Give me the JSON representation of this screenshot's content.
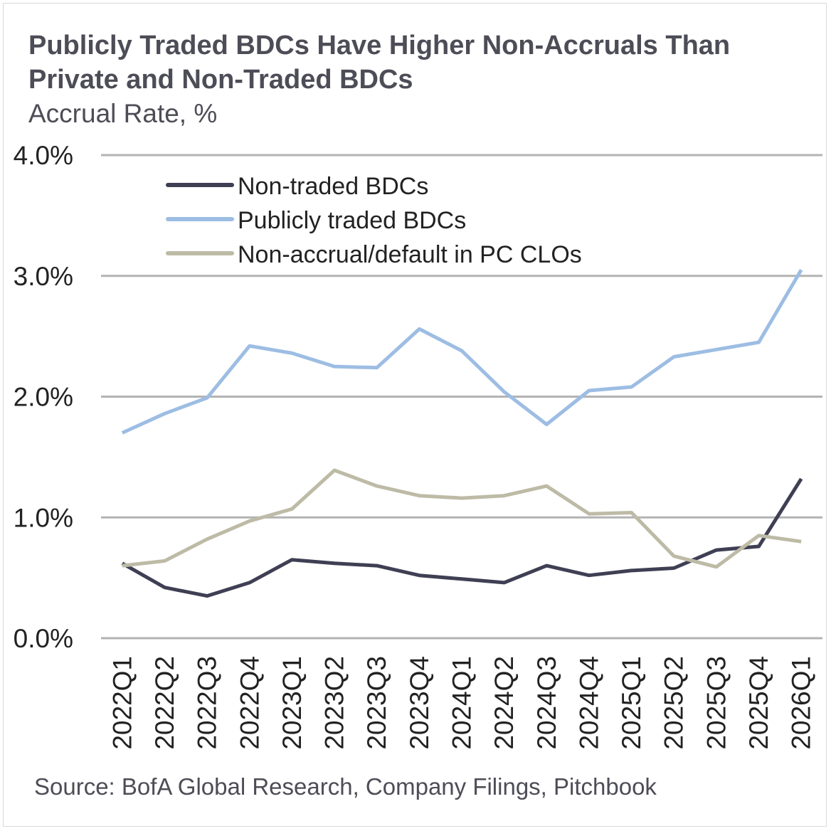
{
  "title": "Publicly Traded BDCs Have Higher Non-Accruals Than Private and Non-Traded BDCs",
  "subtitle": "Accrual Rate, %",
  "source": "Source: BofA Global Research, Company Filings, Pitchbook",
  "chart_data": {
    "type": "line",
    "title": "Publicly Traded BDCs Have Higher Non-Accruals Than Private and Non-Traded BDCs",
    "subtitle": "Accrual Rate, %",
    "xlabel": "",
    "ylabel": "",
    "ylim": [
      0,
      4
    ],
    "yticks": [
      {
        "value": 0,
        "label": "0.0%"
      },
      {
        "value": 1,
        "label": "1.0%"
      },
      {
        "value": 2,
        "label": "2.0%"
      },
      {
        "value": 3,
        "label": "3.0%"
      },
      {
        "value": 4,
        "label": "4.0%"
      }
    ],
    "grid": true,
    "legend_position": "top-left",
    "categories": [
      "2022Q1",
      "2022Q2",
      "2022Q3",
      "2022Q4",
      "2023Q1",
      "2023Q2",
      "2023Q3",
      "2023Q4",
      "2024Q1",
      "2024Q2",
      "2024Q3",
      "2024Q4",
      "2025Q1",
      "2025Q2",
      "2025Q3",
      "2025Q4",
      "2026Q1"
    ],
    "series": [
      {
        "name": "Non-traded BDCs",
        "color": "#3f3f54",
        "values": [
          0.62,
          0.42,
          0.35,
          0.46,
          0.65,
          0.62,
          0.6,
          0.52,
          0.49,
          0.46,
          0.6,
          0.52,
          0.56,
          0.58,
          0.73,
          0.76,
          1.32
        ]
      },
      {
        "name": "Publicly traded BDCs",
        "color": "#9dbde3",
        "values": [
          1.7,
          1.86,
          1.99,
          2.42,
          2.36,
          2.25,
          2.24,
          2.56,
          2.38,
          2.04,
          1.77,
          2.05,
          2.08,
          2.33,
          2.39,
          2.45,
          3.05
        ]
      },
      {
        "name": "Non-accrual/default in PC CLOs",
        "color": "#bdbba6",
        "values": [
          0.6,
          0.64,
          0.82,
          0.97,
          1.07,
          1.39,
          1.26,
          1.18,
          1.16,
          1.18,
          1.26,
          1.03,
          1.04,
          0.68,
          0.59,
          0.85,
          0.8
        ]
      }
    ]
  }
}
